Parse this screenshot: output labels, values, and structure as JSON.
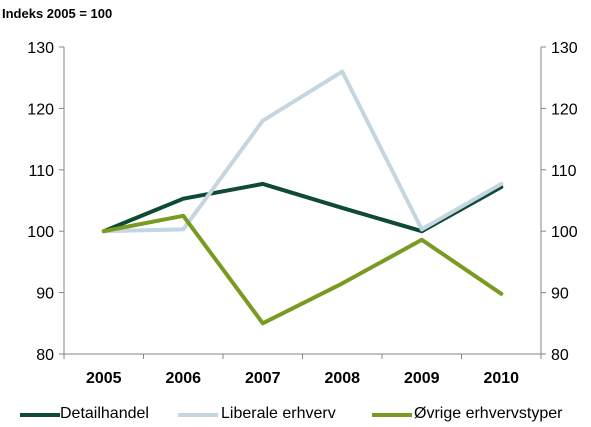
{
  "chart_data": {
    "type": "line",
    "title": "Indeks 2005 = 100",
    "x": [
      "2005",
      "2006",
      "2007",
      "2008",
      "2009",
      "2010"
    ],
    "ylim": [
      80,
      130
    ],
    "yticks": [
      "130",
      "120",
      "110",
      "100",
      "90",
      "80"
    ],
    "yticks_right": [
      "130",
      "120",
      "110",
      "100",
      "90",
      "80"
    ],
    "grid": false,
    "legend_position": "bottom",
    "series": [
      {
        "name": "Detailhandel",
        "color": "#0f4a36",
        "values": [
          100,
          105.3,
          107.7,
          103.8,
          100,
          107.2
        ]
      },
      {
        "name": "Liberale erhverv",
        "color": "#c5d6e0",
        "values": [
          100,
          100.3,
          118,
          126,
          100.3,
          107.7
        ]
      },
      {
        "name": "Øvrige erhvervstyper",
        "color": "#7a9a22",
        "values": [
          100,
          102.5,
          85,
          91.5,
          98.6,
          89.8
        ]
      }
    ]
  }
}
